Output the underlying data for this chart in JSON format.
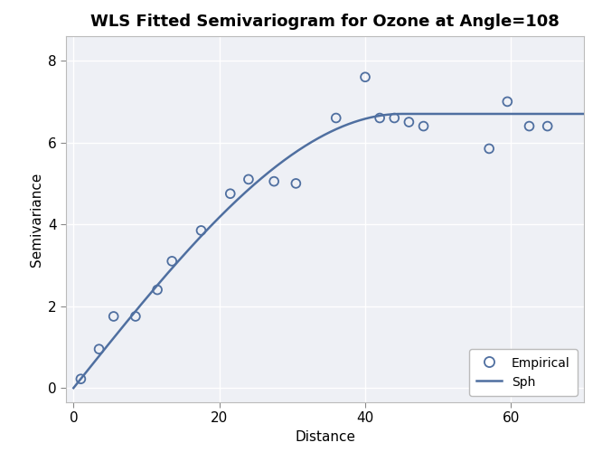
{
  "title": "WLS Fitted Semivariogram for Ozone at Angle=108",
  "xlabel": "Distance",
  "ylabel": "Semivariance",
  "empirical_x": [
    1.0,
    3.5,
    5.5,
    8.5,
    11.5,
    13.5,
    17.5,
    21.5,
    24.0,
    27.5,
    30.5,
    36.0,
    40.0,
    42.0,
    44.0,
    46.0,
    48.0,
    57.0,
    59.5,
    62.5,
    65.0
  ],
  "empirical_y": [
    0.22,
    0.95,
    1.75,
    1.75,
    2.4,
    3.1,
    3.85,
    4.75,
    5.1,
    5.05,
    5.0,
    6.6,
    7.6,
    6.6,
    6.6,
    6.5,
    6.4,
    5.85,
    7.0,
    6.4,
    6.4
  ],
  "sph_nugget": 0.0,
  "sph_sill": 6.7,
  "sph_range": 45.0,
  "xlim": [
    -1,
    70
  ],
  "ylim": [
    -0.35,
    8.6
  ],
  "xticks": [
    0,
    20,
    40,
    60
  ],
  "yticks": [
    0,
    2,
    4,
    6,
    8
  ],
  "line_color": "#4f6fa0",
  "scatter_color": "#4f6fa0",
  "fig_bg_color": "#FFFFFF",
  "plot_bg_color": "#EEF0F5",
  "grid_color": "#FFFFFF",
  "title_fontsize": 13,
  "label_fontsize": 11,
  "tick_fontsize": 11
}
